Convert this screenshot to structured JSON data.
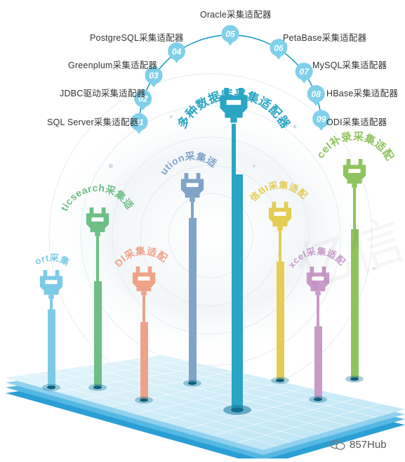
{
  "center": {
    "title": "多种数据库采集适配器",
    "color": "#2aa5c4"
  },
  "top_adapters": [
    {
      "num": "01",
      "label": "SQL Server采集适配器"
    },
    {
      "num": "02",
      "label": "JDBC驱动采集适配器"
    },
    {
      "num": "03",
      "label": "Greenplum采集适配器"
    },
    {
      "num": "04",
      "label": "PostgreSQL采集适配器"
    },
    {
      "num": "05",
      "label": "Oracle采集适配器"
    },
    {
      "num": "06",
      "label": "PetaBase采集适配器"
    },
    {
      "num": "07",
      "label": "MySQL采集适配器"
    },
    {
      "num": "08",
      "label": "HBase采集适配器"
    },
    {
      "num": "09",
      "label": "ODI采集适配器"
    }
  ],
  "pillars": [
    {
      "label": "i@Report采集适配器",
      "color": "#7ccbe6"
    },
    {
      "label": "Elasticsearch采集适配器",
      "color": "#6dbf86"
    },
    {
      "label": "ODI采集适配器",
      "color": "#f0a288"
    },
    {
      "label": "Solution采集适配器",
      "color": "#7ea4c9"
    },
    {
      "label": "亿信BI采集适配器",
      "color": "#e4cc55"
    },
    {
      "label": "Excel采集适配器",
      "color": "#c99ac9"
    },
    {
      "label": "Excel补录采集适配器",
      "color": "#8fc45e"
    }
  ],
  "watermark": {
    "text": "857Hub",
    "icon": "wechat-icon"
  },
  "background_text": "亿信"
}
